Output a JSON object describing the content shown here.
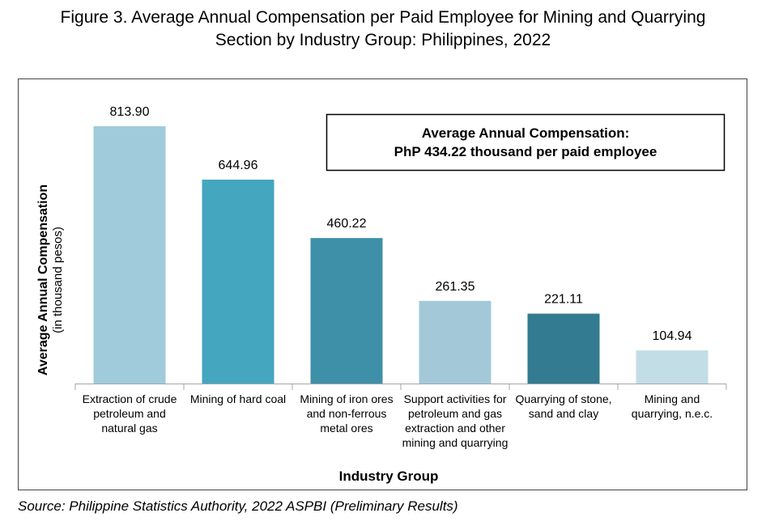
{
  "chart_data": {
    "type": "bar",
    "title": "Figure 3. Average Annual Compensation per Paid Employee for Mining and Quarrying Section by Industry Group: Philippines, 2022",
    "y_label": "Average Annual Compensation",
    "y_sublabel": "(in thousand pesos)",
    "x_label": "Industry Group",
    "callout": [
      "Average Annual Compensation:",
      "PhP 434.22 thousand per paid employee"
    ],
    "annotation": ",",
    "source": "Source: Philippine Statistics Authority, 2022 ASPBI (Preliminary Results)",
    "categories": [
      "Extraction of crude petroleum and natural gas",
      "Mining of hard coal",
      "Mining of iron ores and non-ferrous metal ores",
      "Support activities for petroleum and gas extraction and other mining and quarrying",
      "Quarrying of stone, sand and clay",
      "Mining and quarrying, n.e.c."
    ],
    "values": [
      813.9,
      644.96,
      460.22,
      261.35,
      221.11,
      104.94
    ],
    "value_labels": [
      "813.90",
      "644.96",
      "460.22",
      "261.35",
      "221.11",
      "104.94"
    ],
    "colors": [
      "#a0cbdb",
      "#45a6c0",
      "#3e8fa8",
      "#a3c9d9",
      "#337b90",
      "#c3dde6"
    ]
  }
}
